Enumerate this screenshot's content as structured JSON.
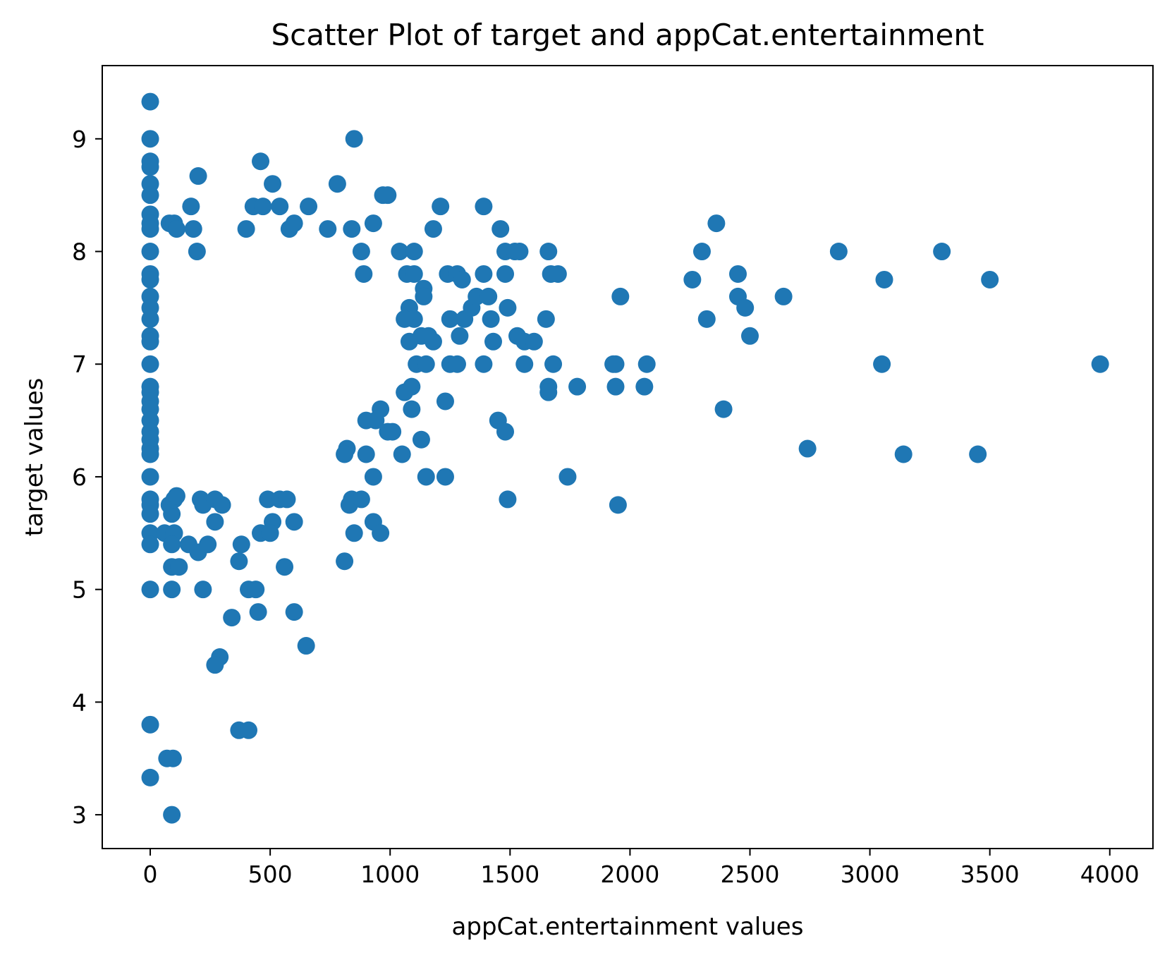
{
  "chart_data": {
    "type": "scatter",
    "title": "Scatter Plot of target and appCat.entertainment",
    "xlabel": "appCat.entertainment values",
    "ylabel": "target values",
    "xlim": [
      -200,
      4180
    ],
    "ylim": [
      2.7,
      9.65
    ],
    "xticks": [
      0,
      500,
      1000,
      1500,
      2000,
      2500,
      3000,
      3500,
      4000
    ],
    "yticks": [
      3,
      4,
      5,
      6,
      7,
      8,
      9
    ],
    "xtick_labels": [
      "0",
      "500",
      "1000",
      "1500",
      "2000",
      "2500",
      "3000",
      "3500",
      "4000"
    ],
    "ytick_labels": [
      "3",
      "4",
      "5",
      "6",
      "7",
      "8",
      "9"
    ],
    "grid": false,
    "legend": "none",
    "color": "#1f77b4",
    "points": [
      [
        0,
        9.33
      ],
      [
        0,
        9.0
      ],
      [
        0,
        8.8
      ],
      [
        0,
        8.75
      ],
      [
        0,
        8.6
      ],
      [
        0,
        8.5
      ],
      [
        0,
        8.33
      ],
      [
        0,
        8.25
      ],
      [
        0,
        8.2
      ],
      [
        0,
        8.0
      ],
      [
        0,
        7.8
      ],
      [
        0,
        7.75
      ],
      [
        0,
        7.6
      ],
      [
        0,
        7.5
      ],
      [
        0,
        7.4
      ],
      [
        0,
        7.25
      ],
      [
        0,
        7.2
      ],
      [
        0,
        7.0
      ],
      [
        0,
        6.8
      ],
      [
        0,
        6.75
      ],
      [
        0,
        6.67
      ],
      [
        0,
        6.6
      ],
      [
        0,
        6.5
      ],
      [
        0,
        6.4
      ],
      [
        0,
        6.33
      ],
      [
        0,
        6.25
      ],
      [
        0,
        6.2
      ],
      [
        0,
        6.0
      ],
      [
        0,
        5.8
      ],
      [
        0,
        5.75
      ],
      [
        0,
        5.67
      ],
      [
        0,
        5.5
      ],
      [
        0,
        5.4
      ],
      [
        0,
        5.0
      ],
      [
        0,
        3.8
      ],
      [
        0,
        3.33
      ],
      [
        80,
        8.25
      ],
      [
        100,
        8.25
      ],
      [
        110,
        8.2
      ],
      [
        170,
        8.4
      ],
      [
        180,
        8.2
      ],
      [
        195,
        8.0
      ],
      [
        200,
        8.67
      ],
      [
        60,
        5.5
      ],
      [
        80,
        5.75
      ],
      [
        90,
        5.67
      ],
      [
        100,
        5.8
      ],
      [
        110,
        5.83
      ],
      [
        100,
        5.5
      ],
      [
        90,
        5.4
      ],
      [
        90,
        5.2
      ],
      [
        120,
        5.2
      ],
      [
        90,
        5.0
      ],
      [
        70,
        3.5
      ],
      [
        95,
        3.5
      ],
      [
        90,
        3.0
      ],
      [
        160,
        5.4
      ],
      [
        200,
        5.33
      ],
      [
        210,
        5.8
      ],
      [
        220,
        5.75
      ],
      [
        240,
        5.4
      ],
      [
        270,
        5.8
      ],
      [
        300,
        5.75
      ],
      [
        270,
        5.6
      ],
      [
        220,
        5.0
      ],
      [
        340,
        4.75
      ],
      [
        290,
        4.4
      ],
      [
        270,
        4.33
      ],
      [
        370,
        5.25
      ],
      [
        380,
        5.4
      ],
      [
        370,
        3.75
      ],
      [
        410,
        3.75
      ],
      [
        410,
        5.0
      ],
      [
        440,
        5.0
      ],
      [
        450,
        4.8
      ],
      [
        460,
        5.5
      ],
      [
        490,
        5.8
      ],
      [
        510,
        5.6
      ],
      [
        500,
        5.5
      ],
      [
        540,
        5.8
      ],
      [
        570,
        5.8
      ],
      [
        560,
        5.2
      ],
      [
        600,
        5.6
      ],
      [
        600,
        4.8
      ],
      [
        650,
        4.5
      ],
      [
        460,
        8.8
      ],
      [
        510,
        8.6
      ],
      [
        430,
        8.4
      ],
      [
        470,
        8.4
      ],
      [
        540,
        8.4
      ],
      [
        400,
        8.2
      ],
      [
        580,
        8.2
      ],
      [
        600,
        8.25
      ],
      [
        660,
        8.4
      ],
      [
        740,
        8.2
      ],
      [
        780,
        8.6
      ],
      [
        850,
        9.0
      ],
      [
        840,
        8.2
      ],
      [
        880,
        8.0
      ],
      [
        890,
        7.8
      ],
      [
        930,
        8.25
      ],
      [
        970,
        8.5
      ],
      [
        990,
        8.5
      ],
      [
        820,
        6.25
      ],
      [
        810,
        6.2
      ],
      [
        840,
        5.8
      ],
      [
        830,
        5.75
      ],
      [
        850,
        5.5
      ],
      [
        810,
        5.25
      ],
      [
        880,
        5.8
      ],
      [
        900,
        6.2
      ],
      [
        930,
        6.0
      ],
      [
        900,
        6.5
      ],
      [
        940,
        6.5
      ],
      [
        960,
        6.6
      ],
      [
        990,
        6.4
      ],
      [
        1010,
        6.4
      ],
      [
        930,
        5.6
      ],
      [
        960,
        5.5
      ],
      [
        1050,
        6.2
      ],
      [
        1040,
        8.0
      ],
      [
        1100,
        8.0
      ],
      [
        1070,
        7.8
      ],
      [
        1100,
        7.8
      ],
      [
        1140,
        7.67
      ],
      [
        1140,
        7.6
      ],
      [
        1080,
        7.5
      ],
      [
        1100,
        7.4
      ],
      [
        1060,
        7.4
      ],
      [
        1130,
        7.25
      ],
      [
        1160,
        7.25
      ],
      [
        1180,
        7.2
      ],
      [
        1080,
        7.2
      ],
      [
        1110,
        7.0
      ],
      [
        1150,
        7.0
      ],
      [
        1090,
        6.8
      ],
      [
        1060,
        6.75
      ],
      [
        1090,
        6.6
      ],
      [
        1130,
        6.33
      ],
      [
        1150,
        6.0
      ],
      [
        1230,
        6.0
      ],
      [
        1180,
        8.2
      ],
      [
        1210,
        8.4
      ],
      [
        1240,
        7.8
      ],
      [
        1280,
        7.8
      ],
      [
        1300,
        7.75
      ],
      [
        1250,
        7.4
      ],
      [
        1290,
        7.25
      ],
      [
        1250,
        7.0
      ],
      [
        1280,
        7.0
      ],
      [
        1230,
        6.67
      ],
      [
        1310,
        7.4
      ],
      [
        1340,
        7.5
      ],
      [
        1360,
        7.6
      ],
      [
        1390,
        7.8
      ],
      [
        1410,
        7.6
      ],
      [
        1390,
        8.4
      ],
      [
        1390,
        7.0
      ],
      [
        1420,
        7.4
      ],
      [
        1430,
        7.2
      ],
      [
        1460,
        8.2
      ],
      [
        1480,
        8.0
      ],
      [
        1490,
        7.5
      ],
      [
        1480,
        7.8
      ],
      [
        1520,
        8.0
      ],
      [
        1540,
        8.0
      ],
      [
        1530,
        7.25
      ],
      [
        1560,
        7.2
      ],
      [
        1600,
        7.2
      ],
      [
        1560,
        7.0
      ],
      [
        1450,
        6.5
      ],
      [
        1480,
        6.4
      ],
      [
        1490,
        5.8
      ],
      [
        1660,
        8.0
      ],
      [
        1650,
        7.4
      ],
      [
        1670,
        7.8
      ],
      [
        1700,
        7.8
      ],
      [
        1680,
        7.0
      ],
      [
        1660,
        6.8
      ],
      [
        1660,
        6.75
      ],
      [
        1780,
        6.8
      ],
      [
        1740,
        6.0
      ],
      [
        1940,
        7.0
      ],
      [
        1930,
        7.0
      ],
      [
        1960,
        7.6
      ],
      [
        1940,
        6.8
      ],
      [
        1950,
        5.75
      ],
      [
        2070,
        7.0
      ],
      [
        2060,
        6.8
      ],
      [
        2260,
        7.75
      ],
      [
        2300,
        8.0
      ],
      [
        2360,
        8.25
      ],
      [
        2450,
        7.8
      ],
      [
        2450,
        7.6
      ],
      [
        2480,
        7.5
      ],
      [
        2320,
        7.4
      ],
      [
        2500,
        7.25
      ],
      [
        2390,
        6.6
      ],
      [
        2640,
        7.6
      ],
      [
        2740,
        6.25
      ],
      [
        2870,
        8.0
      ],
      [
        3060,
        7.75
      ],
      [
        3050,
        7.0
      ],
      [
        3140,
        6.2
      ],
      [
        3300,
        8.0
      ],
      [
        3500,
        7.75
      ],
      [
        3450,
        6.2
      ],
      [
        3960,
        7.0
      ]
    ]
  }
}
